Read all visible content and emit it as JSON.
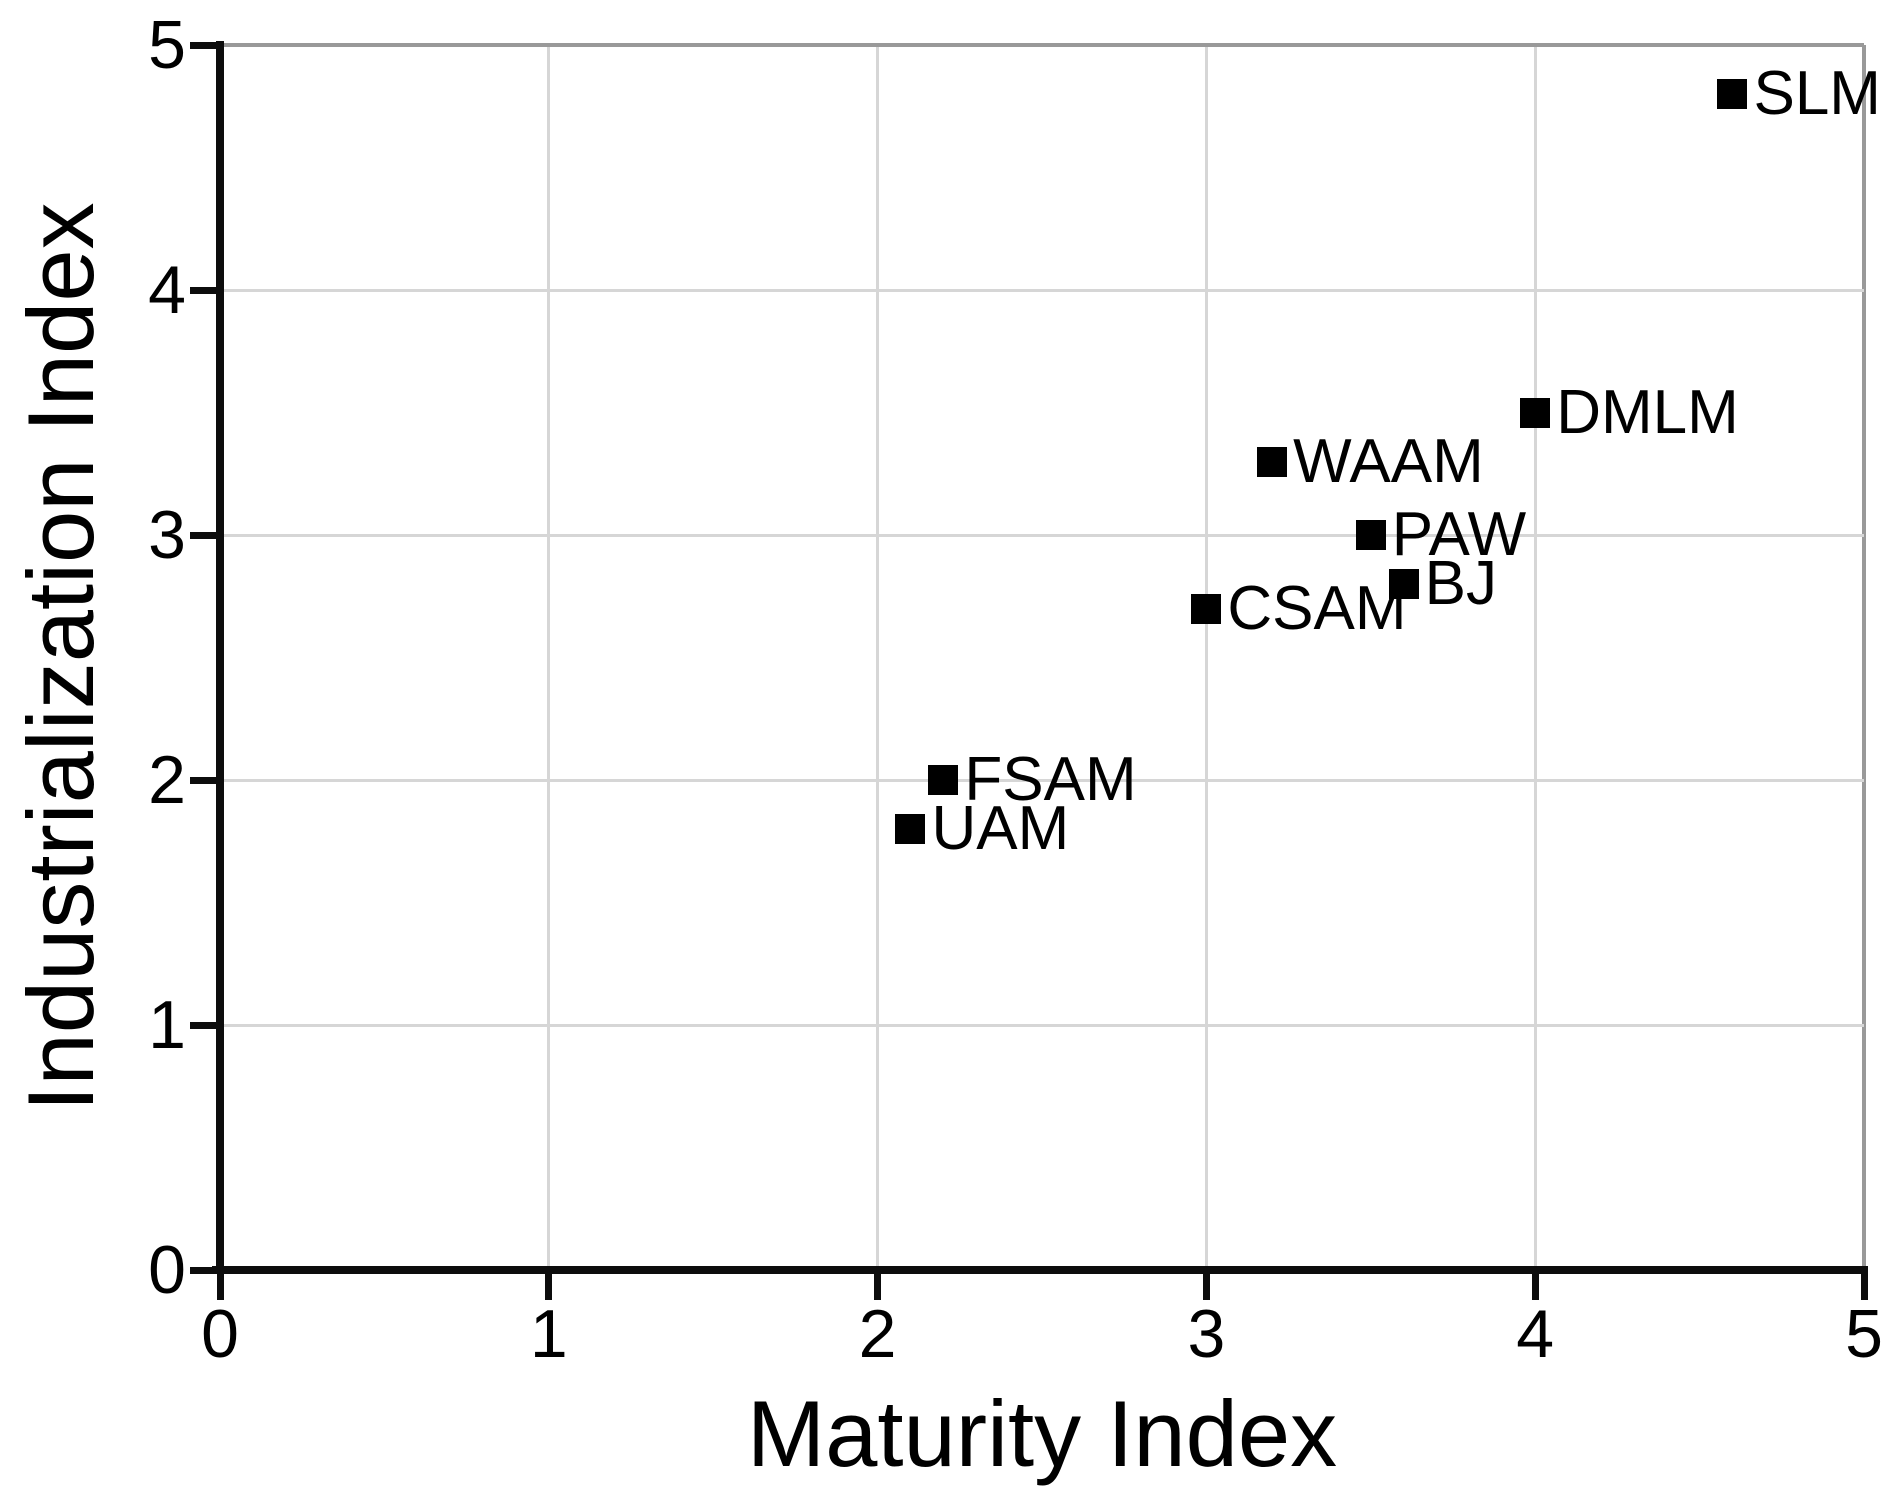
{
  "figure": {
    "background": "#ffffff"
  },
  "chart_data": {
    "type": "scatter",
    "title": "",
    "xlabel": "Maturity Index",
    "ylabel": "Industrialization Index",
    "xlim": [
      0,
      5
    ],
    "ylim": [
      0,
      5
    ],
    "xticks": [
      0,
      1,
      2,
      3,
      4,
      5
    ],
    "yticks": [
      0,
      1,
      2,
      3,
      4,
      5
    ],
    "grid": true,
    "legend": "none",
    "marker": "filled-square",
    "points": [
      {
        "label": "SLM",
        "x": 4.6,
        "y": 4.8
      },
      {
        "label": "DMLM",
        "x": 4.0,
        "y": 3.5
      },
      {
        "label": "WAAM",
        "x": 3.2,
        "y": 3.3
      },
      {
        "label": "PAW",
        "x": 3.5,
        "y": 3.0
      },
      {
        "label": "BJ",
        "x": 3.6,
        "y": 2.8
      },
      {
        "label": "CSAM",
        "x": 3.0,
        "y": 2.7
      },
      {
        "label": "FSAM",
        "x": 2.2,
        "y": 2.0
      },
      {
        "label": "UAM",
        "x": 2.1,
        "y": 1.8
      }
    ],
    "colors": {
      "marker": "#000000",
      "grid": "#d6d6d6",
      "border": "#999999",
      "axis": "#0d0d0d",
      "text": "#000000"
    }
  }
}
